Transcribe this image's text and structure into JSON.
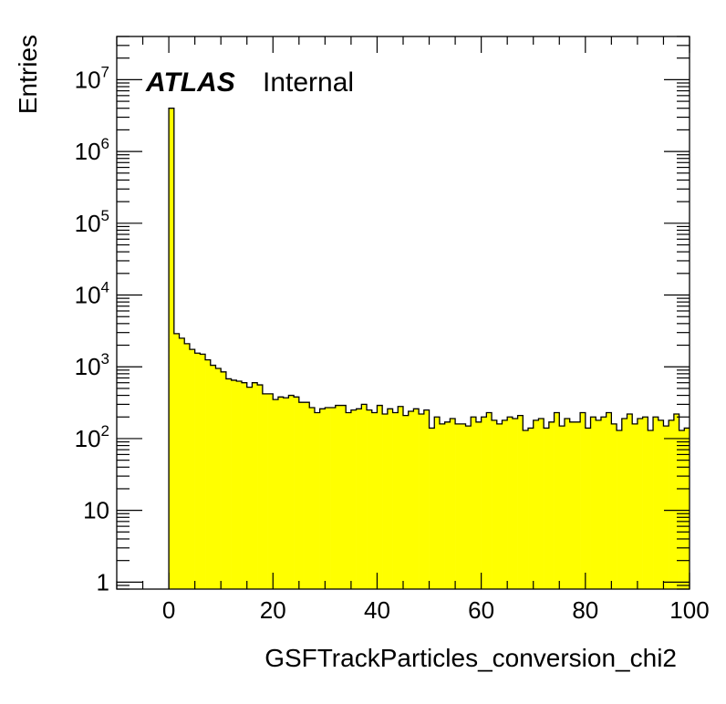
{
  "chart_data": {
    "type": "bar",
    "style": "histogram-step",
    "xlabel": "GSFTrackParticles_conversion_chi2",
    "ylabel": "Entries",
    "xlim": [
      -10,
      100
    ],
    "ylim": [
      0.8,
      40000000
    ],
    "yscale": "log",
    "fill_color": "#ffff00",
    "line_color": "#000000",
    "annotation": {
      "atlas": "ATLAS",
      "label": "Internal"
    },
    "x_ticks": [
      {
        "value": 0,
        "label": "0"
      },
      {
        "value": 20,
        "label": "20"
      },
      {
        "value": 40,
        "label": "40"
      },
      {
        "value": 60,
        "label": "60"
      },
      {
        "value": 80,
        "label": "80"
      },
      {
        "value": 100,
        "label": "100"
      }
    ],
    "y_ticks": [
      {
        "value": 1,
        "label": "1"
      },
      {
        "value": 10,
        "label": "10"
      },
      {
        "value": 100,
        "base": "10",
        "exp": "2"
      },
      {
        "value": 1000,
        "base": "10",
        "exp": "3"
      },
      {
        "value": 10000,
        "base": "10",
        "exp": "4"
      },
      {
        "value": 100000,
        "base": "10",
        "exp": "5"
      },
      {
        "value": 1000000,
        "base": "10",
        "exp": "6"
      },
      {
        "value": 10000000,
        "base": "10",
        "exp": "7"
      }
    ],
    "bin_width": 1,
    "bin_start": 0,
    "values": [
      4000000,
      2900,
      2500,
      2100,
      1750,
      1550,
      1500,
      1250,
      1050,
      950,
      850,
      680,
      650,
      630,
      600,
      520,
      600,
      560,
      420,
      420,
      350,
      380,
      370,
      400,
      380,
      320,
      320,
      270,
      230,
      260,
      270,
      270,
      290,
      290,
      230,
      250,
      260,
      300,
      250,
      230,
      290,
      220,
      260,
      230,
      280,
      210,
      240,
      260,
      220,
      250,
      140,
      200,
      160,
      170,
      190,
      160,
      160,
      150,
      200,
      170,
      200,
      230,
      180,
      160,
      180,
      200,
      190,
      210,
      130,
      140,
      180,
      190,
      140,
      170,
      230,
      150,
      190,
      170,
      170,
      230,
      140,
      200,
      180,
      200,
      230,
      160,
      130,
      190,
      220,
      160,
      190,
      200,
      130,
      200,
      180,
      150,
      180,
      220,
      130,
      140
    ]
  }
}
